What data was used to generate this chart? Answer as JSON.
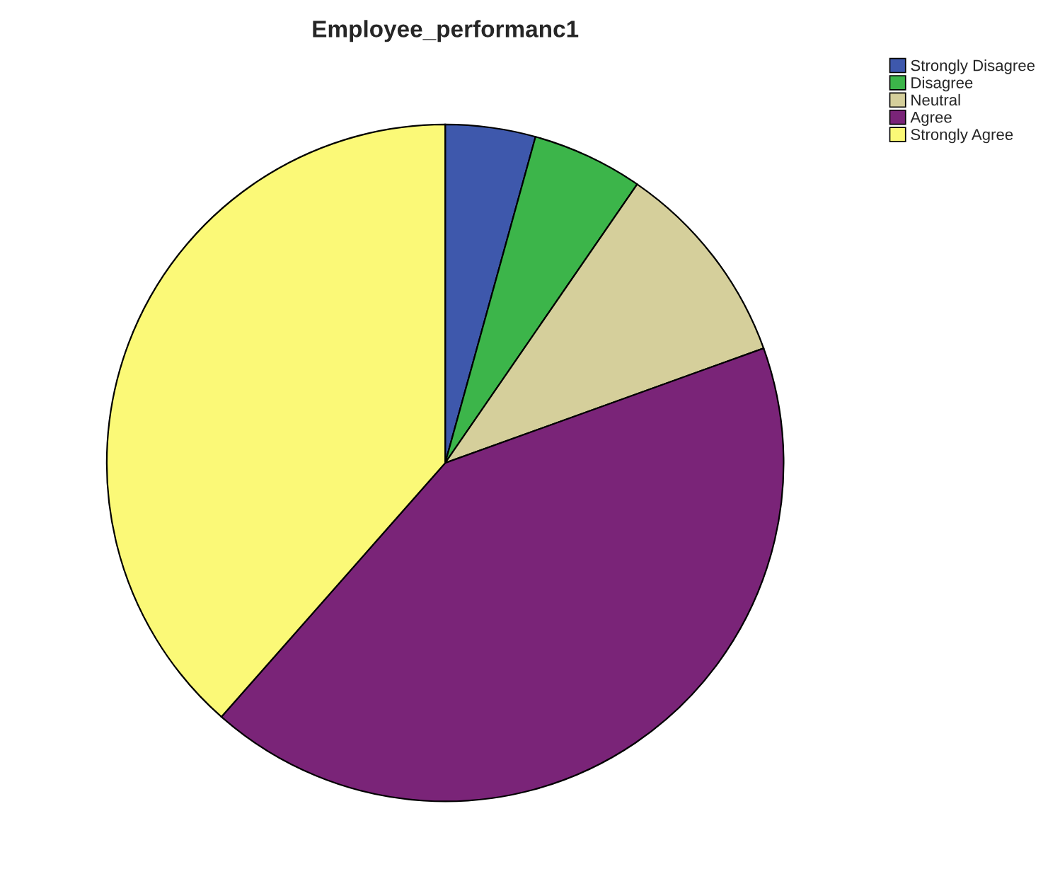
{
  "chart_data": {
    "type": "pie",
    "title": "Employee_performanc1",
    "categories": [
      "Strongly Disagree",
      "Disagree",
      "Neutral",
      "Agree",
      "Strongly Agree"
    ],
    "values": [
      4.3,
      5.3,
      9.9,
      42.0,
      38.5
    ],
    "colors": [
      "#3e58ac",
      "#3cb54a",
      "#d5cf9b",
      "#7a2478",
      "#fbf977"
    ],
    "legend": "top right"
  }
}
